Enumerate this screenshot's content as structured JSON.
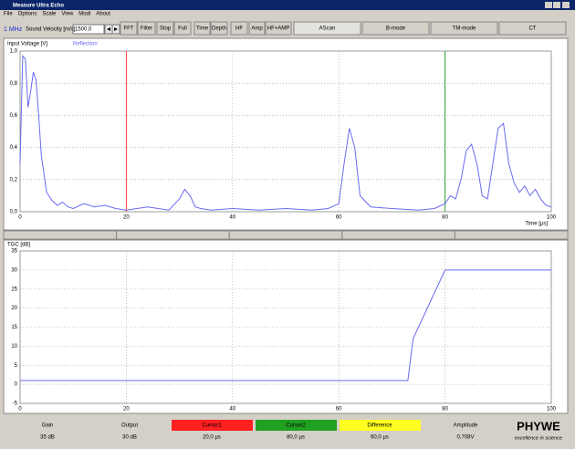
{
  "window": {
    "title": "Measure Ultra Echo"
  },
  "menu": [
    "File",
    "Options",
    "Scale",
    "View",
    "Modi",
    "About"
  ],
  "toolbar": {
    "frequency": "1 MHz",
    "velocity_label": "Sound Velocity [m/s]",
    "velocity": "1500,0",
    "buttons": [
      "FFT",
      "Filter",
      "Stop",
      "Full",
      "Time",
      "Depth",
      "HF",
      "Amp",
      "HF+AMP"
    ],
    "tabs": [
      "AScan",
      "B-mode",
      "TM-mode",
      "CT"
    ]
  },
  "chart_data": [
    {
      "type": "line",
      "y_label": "Input Voltage [V]",
      "x_label": "Time [µs]",
      "x": [
        0,
        0.5,
        1,
        1.5,
        2,
        2.5,
        3,
        3.5,
        4,
        5,
        6,
        7,
        8,
        9,
        10,
        12,
        14,
        16,
        18,
        20,
        22,
        24,
        26,
        28,
        30,
        31,
        32,
        33,
        34,
        36,
        40,
        45,
        50,
        55,
        58,
        60,
        61,
        62,
        63,
        64,
        66,
        70,
        75,
        78,
        80,
        81,
        82,
        83,
        84,
        85,
        86,
        87,
        88,
        89,
        90,
        91,
        92,
        93,
        94,
        95,
        96,
        97,
        98,
        99,
        100
      ],
      "series": [
        {
          "name": "Reflection",
          "color": "#6a6af0",
          "values": [
            0.3,
            0.97,
            0.95,
            0.65,
            0.75,
            0.87,
            0.82,
            0.6,
            0.35,
            0.12,
            0.07,
            0.04,
            0.06,
            0.03,
            0.02,
            0.05,
            0.03,
            0.04,
            0.02,
            0.01,
            0.02,
            0.03,
            0.02,
            0.01,
            0.08,
            0.14,
            0.1,
            0.03,
            0.02,
            0.01,
            0.02,
            0.01,
            0.02,
            0.01,
            0.02,
            0.05,
            0.3,
            0.52,
            0.4,
            0.1,
            0.03,
            0.02,
            0.01,
            0.02,
            0.05,
            0.1,
            0.08,
            0.2,
            0.38,
            0.42,
            0.3,
            0.1,
            0.08,
            0.3,
            0.52,
            0.55,
            0.3,
            0.18,
            0.12,
            0.16,
            0.1,
            0.14,
            0.08,
            0.04,
            0.03
          ]
        }
      ],
      "xlim": [
        0,
        100
      ],
      "ylim": [
        0,
        1
      ],
      "xticks": [
        0,
        20,
        40,
        60,
        80,
        100
      ],
      "yticks": [
        {
          "value": 0,
          "label": "0,0"
        },
        {
          "value": 0.2,
          "label": "0,2"
        },
        {
          "value": 0.4,
          "label": "0,4"
        },
        {
          "value": 0.6,
          "label": "0,6"
        },
        {
          "value": 0.8,
          "label": "0,8"
        },
        {
          "value": 1,
          "label": "1,0"
        }
      ],
      "grid": true,
      "cursors": [
        {
          "x": 20,
          "color": "#ff4040"
        },
        {
          "x": 80,
          "color": "#30a030"
        }
      ]
    },
    {
      "type": "line",
      "y_label": "TGC [dB]",
      "x": [
        0,
        73,
        74,
        80,
        100
      ],
      "series": [
        {
          "color": "#6a6af0",
          "values": [
            1,
            1,
            12,
            30,
            30
          ]
        }
      ],
      "xlim": [
        0,
        100
      ],
      "ylim": [
        -5,
        35
      ],
      "xticks": [
        0,
        20,
        40,
        60,
        80,
        100
      ],
      "yticks": [
        -5,
        0,
        5,
        10,
        15,
        20,
        25,
        30,
        35
      ],
      "grid": true
    }
  ],
  "status": {
    "gain_label": "Gain",
    "gain": "35 dB",
    "output_label": "Output",
    "output": "30 dB",
    "cursor1_label": "Cursor1",
    "cursor1": "20,0 µs",
    "cursor2_label": "Cursor2",
    "cursor2": "80,0 µs",
    "difference_label": "Difference",
    "difference": "60,0 µs",
    "amplitude_label": "Amplitude",
    "amplitude": "0,708V",
    "logo": "PHYWE",
    "slogan": "excellence in science"
  }
}
